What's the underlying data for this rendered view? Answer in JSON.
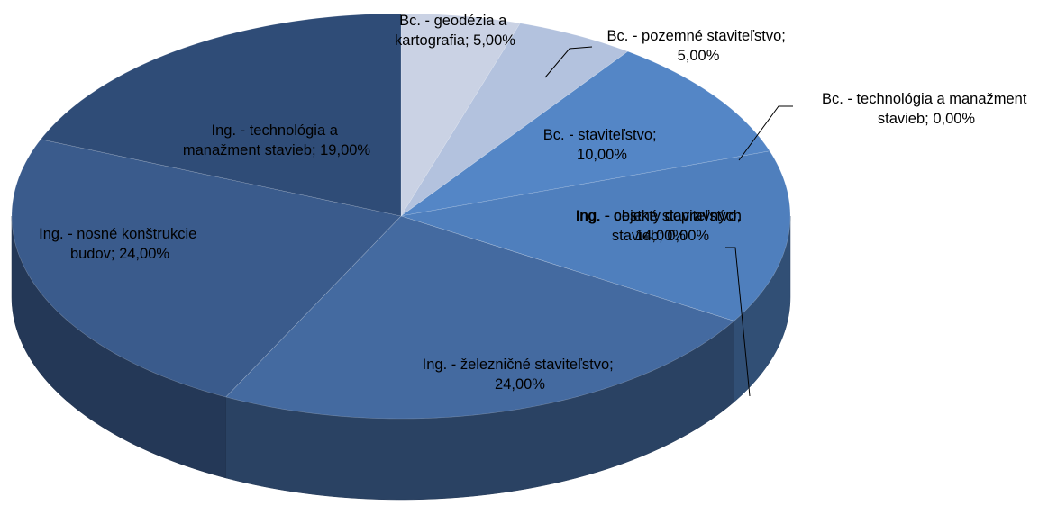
{
  "chart_data": {
    "type": "pie3d",
    "values": [
      5,
      5,
      0,
      10,
      14,
      0,
      24,
      24,
      19
    ],
    "value_labels": [
      "Bc. - geodézia a kartografia; 5,00%",
      "Bc. - pozemné staviteľstvo; 5,00%",
      "Bc. - technológia a manažment stavieb; 0,00%",
      "Bc. - staviteľstvo; 10,00%",
      "Ing. - cestné staviteľstvo; 14,00%",
      "Ing. - objekty dopravných stavieb; 0,00%",
      "Ing. - železničné staviteľstvo; 24,00%",
      "Ing. - nosné konštrukcie budov; 24,00%",
      "Ing. - technológia a manažment stavieb; 19,00%"
    ],
    "colors": [
      "#cad2e4",
      "#b3c2de",
      "#9ab0d6",
      "#5486c6",
      "#4f7fbd",
      "#4a70a6",
      "#446aa0",
      "#3a5b8c",
      "#2f4c77"
    ]
  }
}
